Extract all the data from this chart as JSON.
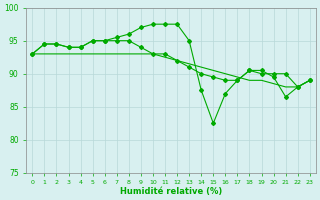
{
  "line1": [
    93,
    94.5,
    94.5,
    94,
    94,
    95,
    95,
    95.5,
    96,
    97,
    97.5,
    97.5,
    97.5,
    95,
    87.5,
    82.5,
    87,
    89,
    90.5,
    90.5,
    89.5,
    86.5,
    88,
    89
  ],
  "line2": [
    93,
    94.5,
    94.5,
    94,
    94,
    95,
    95,
    95,
    95,
    94,
    93,
    93,
    92,
    91,
    90,
    89.5,
    89,
    89,
    90.5,
    90,
    90,
    90,
    88,
    89
  ],
  "line3": [
    93,
    93,
    93,
    93,
    93,
    93,
    93,
    93,
    93,
    93,
    93,
    92.5,
    92,
    91.5,
    91,
    90.5,
    90,
    89.5,
    89,
    89,
    88.5,
    88,
    88,
    89
  ],
  "x": [
    0,
    1,
    2,
    3,
    4,
    5,
    6,
    7,
    8,
    9,
    10,
    11,
    12,
    13,
    14,
    15,
    16,
    17,
    18,
    19,
    20,
    21,
    22,
    23
  ],
  "line_color": "#00aa00",
  "bg_color": "#d8f0f0",
  "grid_color": "#b8d8d8",
  "axis_color": "#888888",
  "xlabel": "Humidité relative (%)",
  "xlabel_color": "#00aa00",
  "tick_color": "#00aa00",
  "ylim": [
    75,
    100
  ],
  "xlim_min": -0.5,
  "xlim_max": 23.5,
  "yticks": [
    75,
    80,
    85,
    90,
    95,
    100
  ],
  "xtick_labels": [
    "0",
    "1",
    "2",
    "3",
    "4",
    "5",
    "6",
    "7",
    "8",
    "9",
    "10",
    "11",
    "12",
    "13",
    "14",
    "15",
    "16",
    "17",
    "18",
    "19",
    "20",
    "21",
    "22",
    "23"
  ]
}
